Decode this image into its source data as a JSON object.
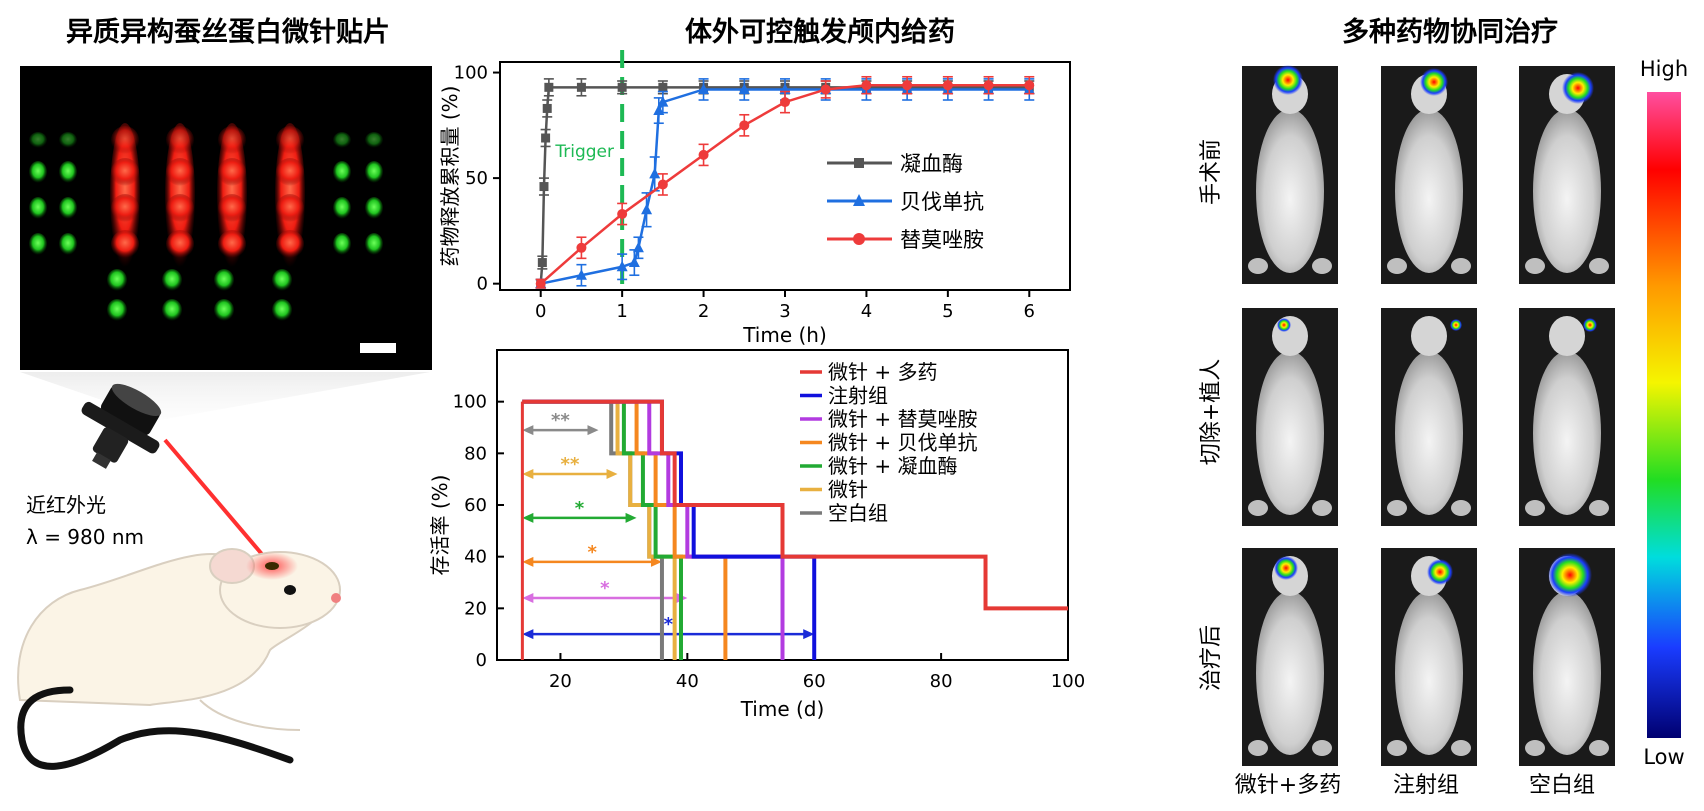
{
  "left_panel": {
    "title": "异质异构蚕丝蛋白微针贴片",
    "laser_label": "近红外光",
    "wavelength_label": "λ = 980 nm",
    "colors": {
      "red_dots": "#ff2a1a",
      "green_dots": "#22c829",
      "laser": "#ff3030",
      "mouse": "#fbf4e6"
    }
  },
  "middle_panel": {
    "title": "体外可控触发颅内给药"
  },
  "right_panel": {
    "title": "多种药物协同治疗",
    "row_labels": [
      "手术前",
      "切除+植人",
      "治疗后"
    ],
    "col_labels": [
      "微针+多药",
      "注射组",
      "空白组"
    ],
    "colorbar_high": "High",
    "colorbar_low": "Low"
  },
  "chart_data": [
    {
      "type": "line",
      "title": "",
      "xlabel": "Time (h)",
      "ylabel": "药物释放累积量 (%)",
      "xlim": [
        -0.5,
        6.5
      ],
      "ylim": [
        -3,
        105
      ],
      "xticks": [
        "0",
        "1",
        "2",
        "3",
        "4",
        "5",
        "6"
      ],
      "yticks": [
        "0",
        "50",
        "100"
      ],
      "annotation": {
        "text": "Trigger",
        "x": 1,
        "color": "#1db954"
      },
      "legend_position": "center-right",
      "series": [
        {
          "name": "凝血酶",
          "color": "#555555",
          "marker": "square",
          "x": [
            0,
            0.02,
            0.04,
            0.06,
            0.08,
            0.1,
            0.5,
            1,
            1.5,
            2,
            2.5,
            3,
            3.5,
            4,
            4.5,
            5,
            5.5,
            6
          ],
          "y": [
            0,
            10,
            46,
            69,
            83,
            93,
            93,
            93,
            93,
            93,
            93,
            93,
            93,
            93,
            93,
            93,
            93,
            93
          ],
          "err": [
            2,
            3,
            4,
            4,
            4,
            4,
            4,
            3,
            3,
            3,
            3,
            3,
            3,
            3,
            3,
            3,
            3,
            3
          ]
        },
        {
          "name": "贝伐单抗",
          "color": "#1f6fe0",
          "marker": "triangle",
          "x": [
            0,
            0.5,
            1,
            1.15,
            1.2,
            1.3,
            1.4,
            1.45,
            1.5,
            2,
            2.5,
            3,
            3.5,
            4,
            4.5,
            5,
            5.5,
            6
          ],
          "y": [
            0,
            4,
            8,
            10,
            17,
            35,
            52,
            82,
            86,
            92,
            92,
            92,
            92,
            92,
            92,
            92,
            92,
            92
          ],
          "err": [
            2,
            5,
            6,
            6,
            5,
            8,
            8,
            6,
            5,
            5,
            5,
            5,
            5,
            5,
            5,
            5,
            5,
            5
          ]
        },
        {
          "name": "替莫唑胺",
          "color": "#ee3b3b",
          "marker": "circle",
          "x": [
            0,
            0.5,
            1,
            1.5,
            2,
            2.5,
            3,
            3.5,
            4,
            4.5,
            5,
            5.5,
            6
          ],
          "y": [
            0,
            17,
            33,
            47,
            61,
            75,
            86,
            92,
            94,
            94,
            94,
            94,
            94
          ],
          "err": [
            2,
            5,
            5,
            5,
            5,
            5,
            5,
            4,
            4,
            4,
            4,
            4,
            4
          ]
        }
      ]
    },
    {
      "type": "line",
      "title": "",
      "xlabel": "Time (d)",
      "ylabel": "存活率 (%)",
      "xlim": [
        10,
        100
      ],
      "ylim": [
        0,
        120
      ],
      "xticks": [
        "20",
        "40",
        "60",
        "80",
        "100"
      ],
      "yticks": [
        "0",
        "20",
        "40",
        "60",
        "80",
        "100"
      ],
      "legend_position": "top-right",
      "series": [
        {
          "name": "微针 + 多药",
          "color": "#e53935",
          "x": [
            14,
            14,
            28,
            30,
            34,
            36,
            38,
            55,
            87,
            100
          ],
          "y": [
            100,
            100,
            100,
            100,
            100,
            80,
            60,
            40,
            20,
            20
          ]
        },
        {
          "name": "注射组",
          "color": "#1010dd",
          "x": [
            14,
            33,
            36,
            39,
            41,
            60
          ],
          "y": [
            100,
            100,
            80,
            60,
            40,
            0
          ]
        },
        {
          "name": "微针 + 替莫唑胺",
          "color": "#b23be0",
          "x": [
            14,
            31,
            34,
            37,
            40,
            55
          ],
          "y": [
            100,
            100,
            80,
            60,
            40,
            0
          ]
        },
        {
          "name": "微针 + 贝伐单抗",
          "color": "#f5871f",
          "x": [
            14,
            29,
            32,
            35,
            38,
            46
          ],
          "y": [
            100,
            100,
            80,
            60,
            40,
            0
          ]
        },
        {
          "name": "微针 + 凝血酶",
          "color": "#22aa33",
          "x": [
            14,
            28,
            30,
            33,
            35,
            39
          ],
          "y": [
            100,
            100,
            80,
            60,
            40,
            0
          ]
        },
        {
          "name": "微针",
          "color": "#e8b040",
          "x": [
            14,
            27,
            29,
            31,
            34,
            38
          ],
          "y": [
            100,
            100,
            80,
            60,
            40,
            0
          ]
        },
        {
          "name": "空白组",
          "color": "#7a7a7a",
          "x": [
            14,
            26,
            28,
            31,
            34,
            36
          ],
          "y": [
            100,
            100,
            80,
            60,
            40,
            0
          ]
        }
      ],
      "significance": [
        {
          "label": "**",
          "color": "#8a8a8a",
          "y": 89,
          "x_end": 26
        },
        {
          "label": "**",
          "color": "#e8b040",
          "y": 72,
          "x_end": 29
        },
        {
          "label": "*",
          "color": "#22aa33",
          "y": 55,
          "x_end": 32
        },
        {
          "label": "*",
          "color": "#f5871f",
          "y": 38,
          "x_end": 36
        },
        {
          "label": "*",
          "color": "#d86ee0",
          "y": 24,
          "x_end": 40
        },
        {
          "label": "*",
          "color": "#1a2bd8",
          "y": 10,
          "x_end": 60
        }
      ]
    }
  ]
}
